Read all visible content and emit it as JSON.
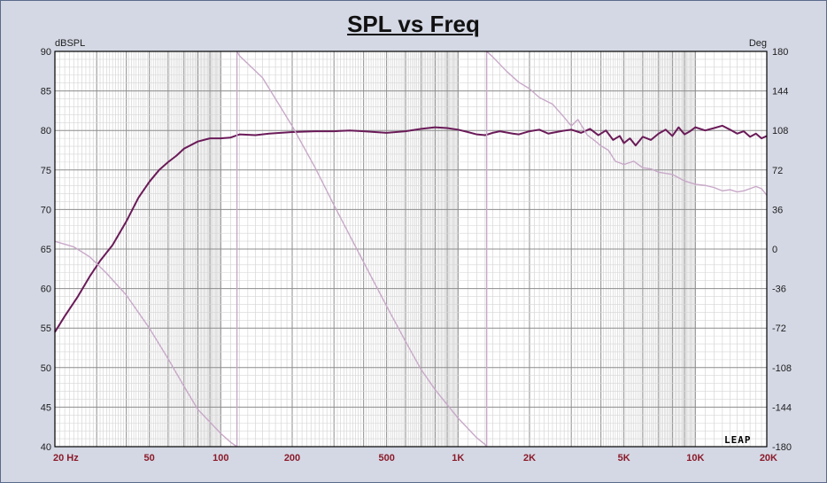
{
  "chart_data": {
    "type": "line",
    "title": "SPL vs Freq",
    "ylabel_left": "dBSPL",
    "ylabel_right": "Deg",
    "x_scale": "log",
    "xlim": [
      20,
      20000
    ],
    "ylim_left": [
      40,
      90
    ],
    "ylim_right": [
      -180,
      180
    ],
    "grid": true,
    "x_tick_labels": [
      {
        "value": 20,
        "label": "20  Hz"
      },
      {
        "value": 50,
        "label": "50"
      },
      {
        "value": 100,
        "label": "100"
      },
      {
        "value": 200,
        "label": "200"
      },
      {
        "value": 500,
        "label": "500"
      },
      {
        "value": 1000,
        "label": "1K"
      },
      {
        "value": 2000,
        "label": "2K"
      },
      {
        "value": 5000,
        "label": "5K"
      },
      {
        "value": 10000,
        "label": "10K"
      },
      {
        "value": 20000,
        "label": "20K"
      }
    ],
    "y_left_ticks": [
      40,
      45,
      50,
      55,
      60,
      65,
      70,
      75,
      80,
      85,
      90
    ],
    "y_right_ticks": [
      -180,
      -144,
      -108,
      -72,
      -36,
      0,
      36,
      72,
      108,
      144,
      180
    ],
    "series": [
      {
        "axis": "left",
        "color": "#6a1a58",
        "points": [
          [
            20,
            54.5
          ],
          [
            22,
            56.5
          ],
          [
            25,
            59
          ],
          [
            28,
            61.5
          ],
          [
            31,
            63.5
          ],
          [
            35,
            65.5
          ],
          [
            40,
            68.5
          ],
          [
            45,
            71.5
          ],
          [
            50,
            73.5
          ],
          [
            55,
            75
          ],
          [
            60,
            76
          ],
          [
            65,
            76.8
          ],
          [
            70,
            77.7
          ],
          [
            80,
            78.6
          ],
          [
            90,
            79
          ],
          [
            100,
            79
          ],
          [
            110,
            79.1
          ],
          [
            120,
            79.5
          ],
          [
            140,
            79.4
          ],
          [
            160,
            79.6
          ],
          [
            200,
            79.8
          ],
          [
            250,
            79.9
          ],
          [
            300,
            79.9
          ],
          [
            350,
            80
          ],
          [
            400,
            79.9
          ],
          [
            500,
            79.7
          ],
          [
            600,
            79.9
          ],
          [
            700,
            80.2
          ],
          [
            800,
            80.4
          ],
          [
            900,
            80.3
          ],
          [
            1000,
            80.1
          ],
          [
            1100,
            79.8
          ],
          [
            1200,
            79.5
          ],
          [
            1300,
            79.4
          ],
          [
            1400,
            79.7
          ],
          [
            1500,
            79.9
          ],
          [
            1700,
            79.6
          ],
          [
            1800,
            79.5
          ],
          [
            2000,
            79.9
          ],
          [
            2200,
            80.1
          ],
          [
            2400,
            79.6
          ],
          [
            2700,
            79.9
          ],
          [
            3000,
            80.1
          ],
          [
            3300,
            79.7
          ],
          [
            3600,
            80.2
          ],
          [
            3900,
            79.4
          ],
          [
            4200,
            80
          ],
          [
            4500,
            78.8
          ],
          [
            4800,
            79.3
          ],
          [
            5000,
            78.4
          ],
          [
            5300,
            79
          ],
          [
            5600,
            78.1
          ],
          [
            6000,
            79.2
          ],
          [
            6500,
            78.8
          ],
          [
            7000,
            79.6
          ],
          [
            7500,
            80.1
          ],
          [
            8000,
            79.3
          ],
          [
            8500,
            80.4
          ],
          [
            9000,
            79.5
          ],
          [
            9500,
            79.9
          ],
          [
            10000,
            80.4
          ],
          [
            11000,
            80
          ],
          [
            12000,
            80.3
          ],
          [
            13000,
            80.6
          ],
          [
            14000,
            80.1
          ],
          [
            15000,
            79.6
          ],
          [
            16000,
            79.9
          ],
          [
            17000,
            79.2
          ],
          [
            18000,
            79.6
          ],
          [
            19000,
            79
          ],
          [
            20000,
            79.3
          ]
        ]
      },
      {
        "axis": "right",
        "color": "#c8a8c8",
        "points": [
          [
            20,
            7
          ],
          [
            24,
            2
          ],
          [
            28,
            -7
          ],
          [
            33,
            -22
          ],
          [
            40,
            -42
          ],
          [
            50,
            -72
          ],
          [
            60,
            -100
          ],
          [
            70,
            -125
          ],
          [
            80,
            -146
          ],
          [
            100,
            -168
          ],
          [
            110,
            -176
          ],
          [
            117,
            -180
          ],
          [
            117,
            180
          ],
          [
            120,
            176
          ],
          [
            150,
            156
          ],
          [
            200,
            112
          ],
          [
            250,
            74
          ],
          [
            300,
            40
          ],
          [
            400,
            -12
          ],
          [
            500,
            -52
          ],
          [
            600,
            -84
          ],
          [
            700,
            -110
          ],
          [
            800,
            -128
          ],
          [
            1000,
            -154
          ],
          [
            1200,
            -172
          ],
          [
            1300,
            -178
          ],
          [
            1320,
            -180
          ],
          [
            1320,
            180
          ],
          [
            1400,
            175
          ],
          [
            1600,
            162
          ],
          [
            1800,
            152
          ],
          [
            2000,
            146
          ],
          [
            2200,
            138
          ],
          [
            2500,
            132
          ],
          [
            2800,
            120
          ],
          [
            3000,
            112
          ],
          [
            3200,
            118
          ],
          [
            3500,
            104
          ],
          [
            3800,
            98
          ],
          [
            4000,
            94
          ],
          [
            4300,
            90
          ],
          [
            4600,
            80
          ],
          [
            5000,
            77
          ],
          [
            5500,
            80
          ],
          [
            6000,
            74
          ],
          [
            6500,
            73
          ],
          [
            7000,
            70
          ],
          [
            8000,
            68
          ],
          [
            9000,
            62
          ],
          [
            10000,
            59
          ],
          [
            11000,
            58
          ],
          [
            12000,
            56
          ],
          [
            13000,
            53
          ],
          [
            14000,
            54
          ],
          [
            15000,
            52
          ],
          [
            16000,
            53
          ],
          [
            17000,
            55
          ],
          [
            18000,
            57
          ],
          [
            19000,
            55
          ],
          [
            20000,
            49
          ]
        ]
      }
    ]
  },
  "logo": "LEAP"
}
